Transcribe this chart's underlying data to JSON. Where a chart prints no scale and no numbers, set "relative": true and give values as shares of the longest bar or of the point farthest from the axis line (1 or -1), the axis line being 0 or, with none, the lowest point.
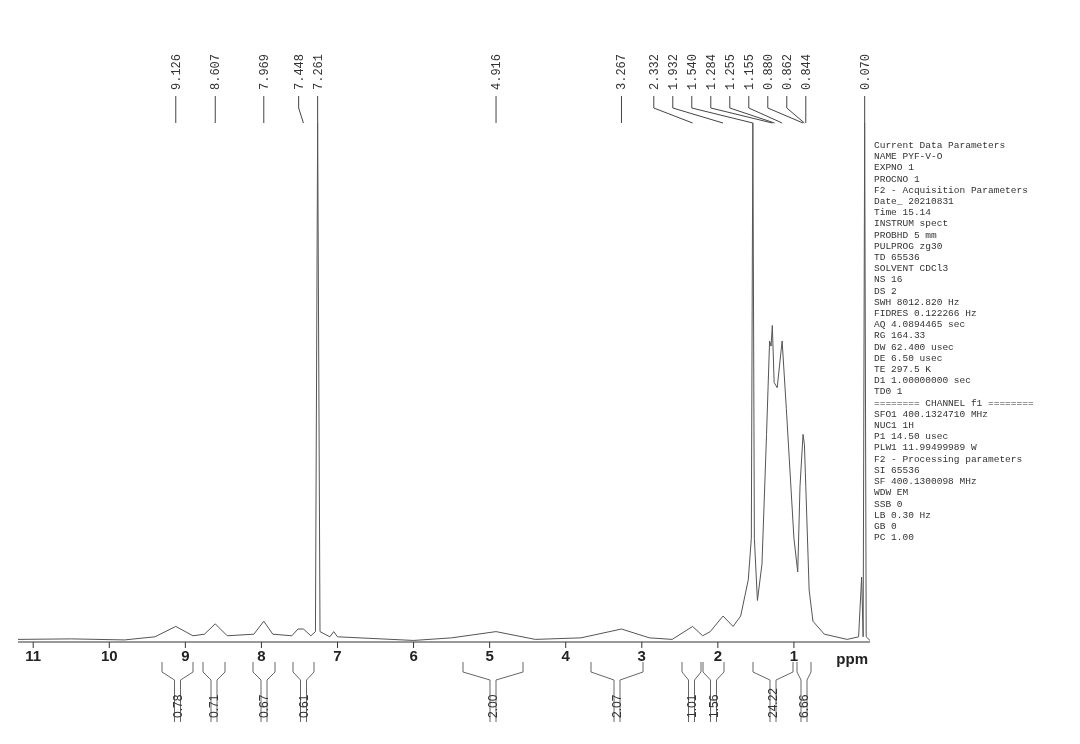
{
  "chart_data": {
    "type": "line",
    "relative": true,
    "xlabel": "ppm",
    "xlim": [
      11.2,
      0
    ],
    "xticks": [
      11,
      10,
      9,
      8,
      7,
      6,
      5,
      4,
      3,
      2,
      1
    ],
    "grid": false,
    "legend": false,
    "marker": "none",
    "series": [
      {
        "color": "#555555",
        "x": [
          11.2,
          10.5,
          9.8,
          9.4,
          9.126,
          8.9,
          8.75,
          8.607,
          8.45,
          8.1,
          7.969,
          7.85,
          7.6,
          7.52,
          7.448,
          7.35,
          7.29,
          7.261,
          7.23,
          7.1,
          7.05,
          7.0,
          6.0,
          5.5,
          4.916,
          4.4,
          3.8,
          3.267,
          2.9,
          2.6,
          2.332,
          2.2,
          2.1,
          1.932,
          1.8,
          1.7,
          1.6,
          1.56,
          1.54,
          1.52,
          1.48,
          1.42,
          1.36,
          1.32,
          1.3,
          1.284,
          1.26,
          1.22,
          1.155,
          1.1,
          1.0,
          0.95,
          0.92,
          0.88,
          0.862,
          0.844,
          0.8,
          0.75,
          0.6,
          0.3,
          0.15,
          0.11,
          0.09,
          0.07,
          0.05,
          0.0
        ],
        "values": [
          0.005,
          0.006,
          0.004,
          0.01,
          0.03,
          0.012,
          0.015,
          0.035,
          0.012,
          0.015,
          0.04,
          0.015,
          0.012,
          0.025,
          0.025,
          0.012,
          0.02,
          1,
          0.02,
          0.01,
          0.02,
          0.01,
          0.003,
          0.008,
          0.02,
          0.005,
          0.008,
          0.025,
          0.008,
          0.005,
          0.03,
          0.012,
          0.02,
          0.05,
          0.03,
          0.05,
          0.12,
          0.2,
          1,
          0.2,
          0.08,
          0.15,
          0.4,
          0.58,
          0.57,
          0.61,
          0.5,
          0.49,
          0.58,
          0.45,
          0.2,
          0.135,
          0.3,
          0.4,
          0.38,
          0.3,
          0.1,
          0.04,
          0.015,
          0.005,
          0.01,
          0.125,
          0.01,
          1,
          0.01,
          0.003
        ]
      }
    ],
    "annotations": [
      {
        "text": "9.126",
        "x": 9.126
      },
      {
        "text": "8.607",
        "x": 8.607
      },
      {
        "text": "7.969",
        "x": 7.969
      },
      {
        "text": "7.448",
        "x": 7.448
      },
      {
        "text": "7.261",
        "x": 7.261
      },
      {
        "text": "4.916",
        "x": 4.916
      },
      {
        "text": "3.267",
        "x": 3.267
      },
      {
        "text": "2.332",
        "x": 2.332
      },
      {
        "text": "1.932",
        "x": 1.932
      },
      {
        "text": "1.540",
        "x": 1.54
      },
      {
        "text": "1.284",
        "x": 1.284
      },
      {
        "text": "1.255",
        "x": 1.255
      },
      {
        "text": "1.155",
        "x": 1.155
      },
      {
        "text": "0.880",
        "x": 0.88
      },
      {
        "text": "0.862",
        "x": 0.862
      },
      {
        "text": "0.844",
        "x": 0.844
      },
      {
        "text": "0.070",
        "x": 0.07
      },
      "0.78",
      "0.71",
      "0.67",
      "0.61",
      "2.00",
      "2.07",
      "1.01",
      "1.56",
      "24.22",
      "6.66",
      "Current Data Parameters",
      "NAME PYF-V-O",
      "EXPNO 1",
      "PROCNO 1",
      "F2 - Acquisition Parameters",
      "Date_ 20210831",
      "Time 15.14",
      "INSTRUM spect",
      "PROBHD 5 mm",
      "PULPROG zg30",
      "TD 65536",
      "SOLVENT CDCl3",
      "NS 16",
      "DS 2",
      "SWH 8012.820 Hz",
      "FIDRES 0.122266 Hz",
      "AQ 4.0894465 sec",
      "RG 164.33",
      "DW 62.400 usec",
      "DE 6.50 usec",
      "TE 297.5 K",
      "D1 1.00000000 sec",
      "TD0 1",
      "======== CHANNEL f1 ========",
      "SFO1 400.1324710 MHz",
      "NUC1 1H",
      "P1 14.50 usec",
      "PLW1 11.99499989 W",
      "F2 - Processing parameters",
      "SI 65536",
      "SF 400.1300098 MHz",
      "WDW EM",
      "SSB 0",
      "LB 0.30 Hz",
      "GB 0",
      "PC 1.00"
    ]
  }
}
